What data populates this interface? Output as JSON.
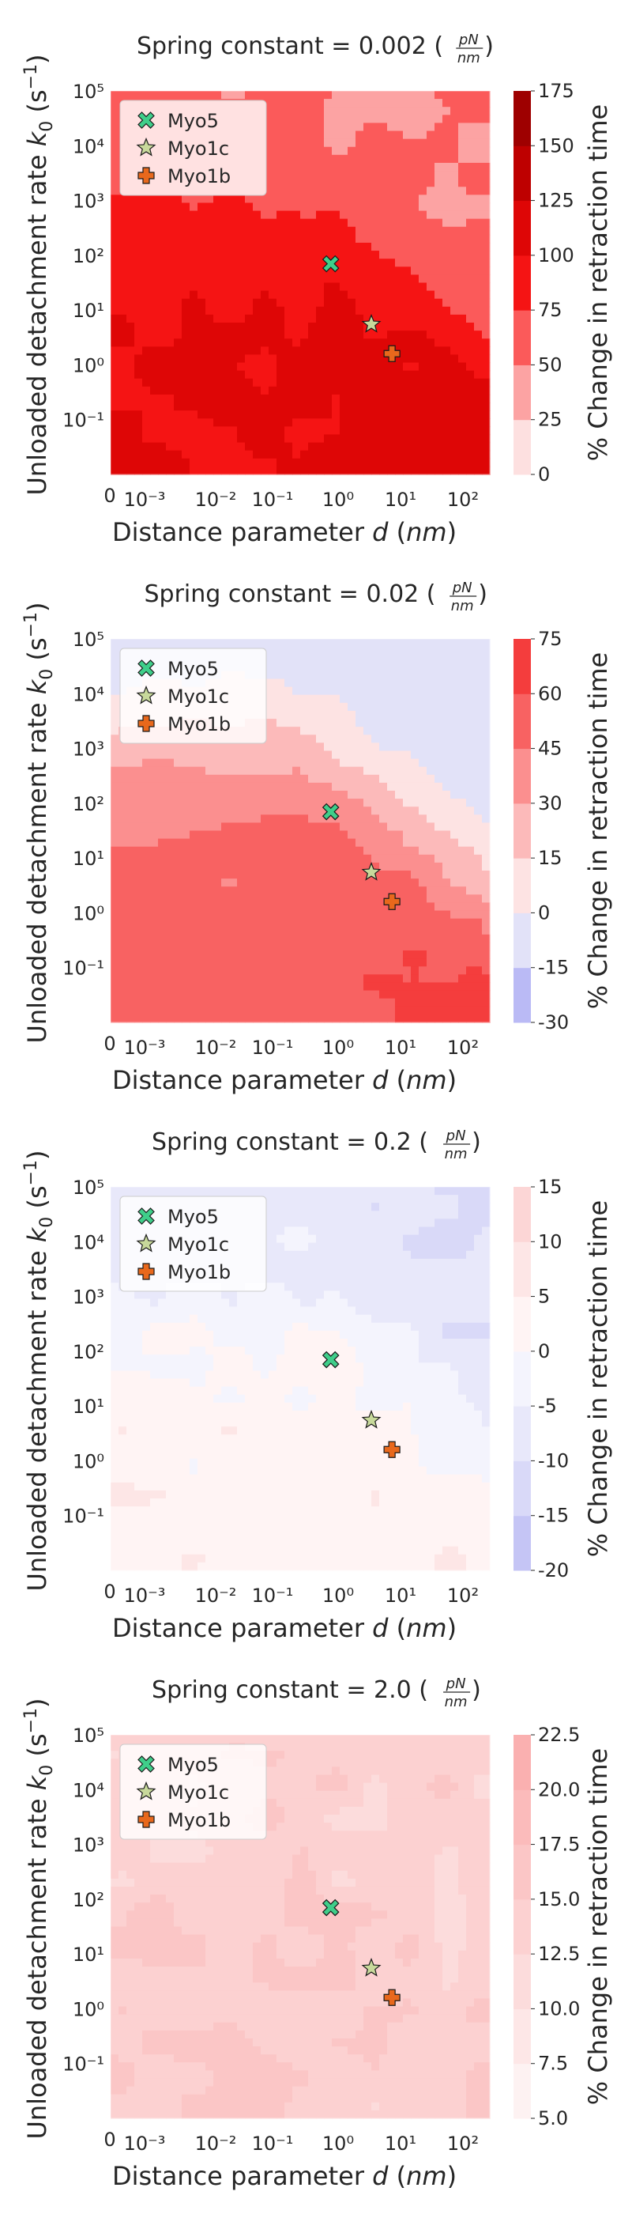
{
  "chart_data": [
    {
      "type": "heatmap",
      "title": "Spring constant = 0.002",
      "title_unit": {
        "numerator": "pN",
        "denominator": "nm"
      },
      "xlabel": "Distance parameter",
      "xlabel_symbol": "d",
      "xlabel_unit": "(nm)",
      "ylabel": "Unloaded detachment rate",
      "ylabel_symbol": "k",
      "ylabel_subscript": "0",
      "ylabel_unit": "(s",
      "ylabel_unit_exponent": "−1",
      "ylabel_unit_close": ")",
      "x_scale": "symlog",
      "y_scale": "log",
      "x_ticks": [
        "0",
        "10⁻³",
        "10⁻²",
        "10⁻¹",
        "10⁰",
        "10¹",
        "10²"
      ],
      "y_ticks": [
        "10⁵",
        "10⁴",
        "10³",
        "10²",
        "10¹",
        "10⁰",
        "10⁻¹"
      ],
      "colorbar_label": "% Change in retraction time",
      "colorbar_levels": [
        0,
        25,
        50,
        75,
        100,
        125,
        150,
        175
      ],
      "colorbar_colors": [
        "#fde0e0",
        "#fca3a3",
        "#fb5a5a",
        "#f51414",
        "#de0606",
        "#be0000",
        "#9e0000"
      ],
      "field": {
        "x_log_range": [
          -3.6,
          2.6
        ],
        "y_log_range": [
          -2.0,
          5.0
        ],
        "base": 102,
        "plateau": 48,
        "plateau_width": 0.75,
        "ridge_offset": 2.6,
        "ridge_slope": 0.95,
        "boundary_sharpness": 0.5,
        "ridge_strength": 1.5,
        "ridge_start": -0.5,
        "ridge_width": 0.55,
        "noise": 8
      },
      "markers": [
        {
          "name": "Myo5",
          "d": 1.0,
          "k0": 70,
          "symbol": "x",
          "color": "#3fce8a"
        },
        {
          "name": "Myo1c",
          "d": 4.6,
          "k0": 5.5,
          "symbol": "star",
          "color": "#c8d99b"
        },
        {
          "name": "Myo1b",
          "d": 10.0,
          "k0": 1.6,
          "symbol": "plus",
          "color": "#e8681c"
        }
      ],
      "legend_position": "upper left"
    },
    {
      "type": "heatmap",
      "title": "Spring constant = 0.02",
      "title_unit": {
        "numerator": "pN",
        "denominator": "nm"
      },
      "xlabel": "Distance parameter",
      "xlabel_symbol": "d",
      "xlabel_unit": "(nm)",
      "ylabel": "Unloaded detachment rate",
      "ylabel_symbol": "k",
      "ylabel_subscript": "0",
      "ylabel_unit": "(s",
      "ylabel_unit_exponent": "−1",
      "ylabel_unit_close": ")",
      "x_scale": "symlog",
      "y_scale": "log",
      "x_ticks": [
        "0",
        "10⁻³",
        "10⁻²",
        "10⁻¹",
        "10⁰",
        "10¹",
        "10²"
      ],
      "y_ticks": [
        "10⁵",
        "10⁴",
        "10³",
        "10²",
        "10¹",
        "10⁰",
        "10⁻¹"
      ],
      "colorbar_label": "% Change in retraction time",
      "colorbar_levels": [
        -30,
        -15,
        0,
        15,
        30,
        45,
        60,
        75
      ],
      "colorbar_colors": [
        "#babaf5",
        "#e2e2f8",
        "#fde3e3",
        "#fcbaba",
        "#fb8f8f",
        "#f86262",
        "#f43d3d"
      ],
      "field": {
        "x_log_range": [
          -3.6,
          2.6
        ],
        "y_log_range": [
          -2.0,
          5.0
        ],
        "base": 52,
        "plateau": -12,
        "plateau_width": 0.85,
        "ridge_offset": 2.6,
        "ridge_slope": 0.95,
        "boundary_sharpness": 0.5,
        "ridge_strength": 1.3,
        "ridge_start": -0.5,
        "ridge_width": 0.55,
        "noise": 5
      },
      "markers": [
        {
          "name": "Myo5",
          "d": 1.0,
          "k0": 70,
          "symbol": "x",
          "color": "#3fce8a"
        },
        {
          "name": "Myo1c",
          "d": 4.6,
          "k0": 5.5,
          "symbol": "star",
          "color": "#c8d99b"
        },
        {
          "name": "Myo1b",
          "d": 10.0,
          "k0": 1.6,
          "symbol": "plus",
          "color": "#e8681c"
        }
      ],
      "legend_position": "upper left"
    },
    {
      "type": "heatmap",
      "title": "Spring constant = 0.2",
      "title_unit": {
        "numerator": "pN",
        "denominator": "nm"
      },
      "xlabel": "Distance parameter",
      "xlabel_symbol": "d",
      "xlabel_unit": "(nm)",
      "ylabel": "Unloaded detachment rate",
      "ylabel_symbol": "k",
      "ylabel_subscript": "0",
      "ylabel_unit": "(s",
      "ylabel_unit_exponent": "−1",
      "ylabel_unit_close": ")",
      "x_scale": "symlog",
      "y_scale": "log",
      "x_ticks": [
        "0",
        "10⁻³",
        "10⁻²",
        "10⁻¹",
        "10⁰",
        "10¹",
        "10²"
      ],
      "y_ticks": [
        "10⁵",
        "10⁴",
        "10³",
        "10²",
        "10¹",
        "10⁰",
        "10⁻¹"
      ],
      "colorbar_label": "% Change in retraction time",
      "colorbar_levels": [
        -20,
        -15,
        -10,
        -5,
        0,
        5,
        10,
        15
      ],
      "colorbar_colors": [
        "#c5c5f5",
        "#d9d9f8",
        "#e8e8fa",
        "#f4f4fd",
        "#fff4f4",
        "#fde6e6",
        "#fcd6d6"
      ],
      "field": {
        "x_log_range": [
          -3.6,
          2.6
        ],
        "y_log_range": [
          -2.0,
          5.0
        ],
        "base": 3,
        "plateau": -10,
        "plateau_width": 0.95,
        "ridge_offset": 2.6,
        "ridge_slope": 0.95,
        "boundary_sharpness": 0.5,
        "ridge_strength": 0.4,
        "ridge_start": -0.5,
        "ridge_width": 0.55,
        "noise": 3
      },
      "markers": [
        {
          "name": "Myo5",
          "d": 1.0,
          "k0": 70,
          "symbol": "x",
          "color": "#3fce8a"
        },
        {
          "name": "Myo1c",
          "d": 4.6,
          "k0": 5.5,
          "symbol": "star",
          "color": "#c8d99b"
        },
        {
          "name": "Myo1b",
          "d": 10.0,
          "k0": 1.6,
          "symbol": "plus",
          "color": "#e8681c"
        }
      ],
      "legend_position": "upper left"
    },
    {
      "type": "heatmap",
      "title": "Spring constant = 2.0",
      "title_unit": {
        "numerator": "pN",
        "denominator": "nm"
      },
      "xlabel": "Distance parameter",
      "xlabel_symbol": "d",
      "xlabel_unit": "(nm)",
      "ylabel": "Unloaded detachment rate",
      "ylabel_symbol": "k",
      "ylabel_subscript": "0",
      "ylabel_unit": "(s",
      "ylabel_unit_exponent": "−1",
      "ylabel_unit_close": ")",
      "x_scale": "symlog",
      "y_scale": "log",
      "x_ticks": [
        "0",
        "10⁻³",
        "10⁻²",
        "10⁻¹",
        "10⁰",
        "10¹",
        "10²"
      ],
      "y_ticks": [
        "10⁵",
        "10⁴",
        "10³",
        "10²",
        "10¹",
        "10⁰",
        "10⁻¹"
      ],
      "colorbar_label": "% Change in retraction time",
      "colorbar_levels": [
        5.0,
        7.5,
        10.0,
        12.5,
        15.0,
        17.5,
        20.0,
        22.5
      ],
      "colorbar_colors": [
        "#fdf2f2",
        "#fde7e7",
        "#fcdcdc",
        "#fcd1d1",
        "#fbc6c6",
        "#fbbbbb",
        "#fab0b0"
      ],
      "field": {
        "x_log_range": [
          -3.6,
          2.6
        ],
        "y_log_range": [
          -2.0,
          5.0
        ],
        "base": 14.5,
        "plateau": 13.5,
        "plateau_width": 0.8,
        "ridge_offset": 2.6,
        "ridge_slope": 0.95,
        "boundary_sharpness": 0.5,
        "ridge_strength": 0.3,
        "ridge_start": -0.5,
        "ridge_width": 0.55,
        "noise": 2.2
      },
      "markers": [
        {
          "name": "Myo5",
          "d": 1.0,
          "k0": 70,
          "symbol": "x",
          "color": "#3fce8a"
        },
        {
          "name": "Myo1c",
          "d": 4.6,
          "k0": 5.5,
          "symbol": "star",
          "color": "#c8d99b"
        },
        {
          "name": "Myo1b",
          "d": 10.0,
          "k0": 1.6,
          "symbol": "plus",
          "color": "#e8681c"
        }
      ],
      "legend_position": "upper left"
    }
  ]
}
